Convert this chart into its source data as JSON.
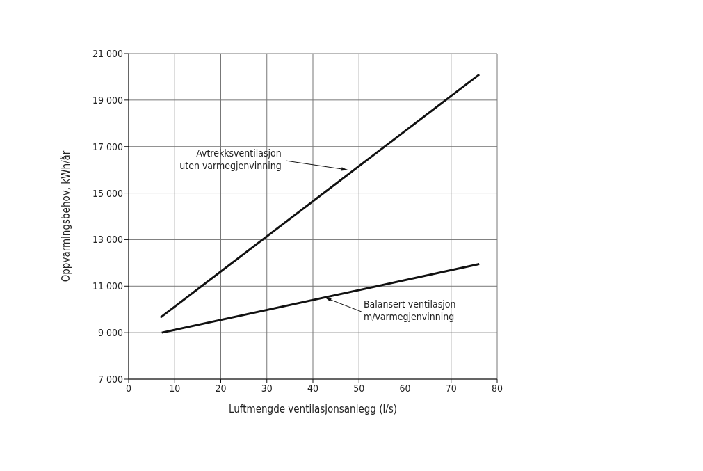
{
  "chart_data": {
    "type": "line",
    "xlabel": "Luftmengde ventilasjonsanlegg (l/s)",
    "ylabel": "Oppvarmingsbehov, kWh/år",
    "series": [
      {
        "color": "#111111",
        "x": [
          6.9,
          76.1
        ],
        "values": [
          9650,
          20100
        ]
      },
      {
        "color": "#111111",
        "x": [
          7.2,
          76.1
        ],
        "values": [
          9000,
          11950
        ]
      }
    ],
    "xlim": [
      0,
      80
    ],
    "xticks": [
      0,
      10,
      20,
      30,
      40,
      50,
      60,
      70,
      80
    ],
    "ylim": [
      7000,
      21000
    ],
    "yticks": [
      {
        "value": 7000,
        "label": "7 000"
      },
      {
        "value": 9000,
        "label": "9 000"
      },
      {
        "value": 11000,
        "label": "11 000"
      },
      {
        "value": 13000,
        "label": "13 000"
      },
      {
        "value": 15000,
        "label": "15 000"
      },
      {
        "value": 17000,
        "label": "17 000"
      },
      {
        "value": 19000,
        "label": "19 000"
      },
      {
        "value": 21000,
        "label": "21 000"
      }
    ],
    "grid": true,
    "marker": "none",
    "line_style": "solid",
    "annotations": [
      {
        "text": "Avtrekksventilasjon\nuten varmegjenvinning",
        "x": 47.5,
        "y": 16000
      },
      {
        "text": "Balansert ventilasjon\nm/varmegjenvinning",
        "x": 42.7,
        "y": 10500
      }
    ]
  }
}
